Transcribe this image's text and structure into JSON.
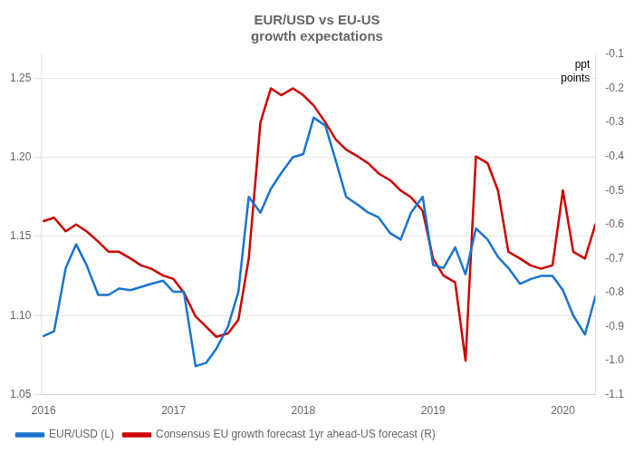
{
  "chart_data": {
    "type": "line",
    "title": "EUR/USD vs EU-US\ngrowth expectations",
    "annotations": [
      "ppt\npoints"
    ],
    "x": [
      2016.0,
      2016.08,
      2016.17,
      2016.25,
      2016.33,
      2016.42,
      2016.5,
      2016.58,
      2016.67,
      2016.75,
      2016.83,
      2016.92,
      2017.0,
      2017.08,
      2017.17,
      2017.25,
      2017.33,
      2017.42,
      2017.5,
      2017.58,
      2017.67,
      2017.75,
      2017.83,
      2017.92,
      2018.0,
      2018.08,
      2018.17,
      2018.25,
      2018.33,
      2018.42,
      2018.5,
      2018.58,
      2018.67,
      2018.75,
      2018.83,
      2018.92,
      2019.0,
      2019.08,
      2019.17,
      2019.25,
      2019.33,
      2019.42,
      2019.5,
      2019.58,
      2019.67,
      2019.75,
      2019.83,
      2019.92,
      2020.0,
      2020.08,
      2020.17,
      2020.25
    ],
    "series": [
      {
        "name": "EUR/USD (L)",
        "color": "#1874CD",
        "values": [
          1.087,
          1.09,
          1.13,
          1.145,
          1.132,
          1.113,
          1.113,
          1.117,
          1.116,
          1.118,
          1.12,
          1.122,
          1.115,
          1.115,
          1.068,
          1.07,
          1.079,
          1.093,
          1.115,
          1.175,
          1.165,
          1.18,
          1.19,
          1.2,
          1.202,
          1.225,
          1.22,
          1.198,
          1.175,
          1.17,
          1.165,
          1.162,
          1.152,
          1.148,
          1.165,
          1.175,
          1.132,
          1.13,
          1.143,
          1.126,
          1.155,
          1.148,
          1.137,
          1.13,
          1.12,
          1.123,
          1.125,
          1.125,
          1.116,
          1.1,
          1.088,
          1.112
        ]
      },
      {
        "name": "Consensus EU growth forecast 1yr ahead-US forecast (R)",
        "color": "#cc0000",
        "axis": "y2",
        "values": [
          -0.59,
          -0.58,
          -0.62,
          -0.6,
          -0.62,
          -0.65,
          -0.68,
          -0.68,
          -0.7,
          -0.72,
          -0.73,
          -0.75,
          -0.76,
          -0.8,
          -0.87,
          -0.9,
          -0.93,
          -0.92,
          -0.88,
          -0.7,
          -0.3,
          -0.2,
          -0.22,
          -0.2,
          -0.22,
          -0.25,
          -0.3,
          -0.35,
          -0.38,
          -0.4,
          -0.42,
          -0.45,
          -0.47,
          -0.5,
          -0.52,
          -0.56,
          -0.7,
          -0.75,
          -0.77,
          -1.0,
          -0.4,
          -0.42,
          -0.5,
          -0.68,
          -0.7,
          -0.72,
          -0.73,
          -0.72,
          -0.5,
          -0.68,
          -0.7,
          -0.6
        ]
      }
    ],
    "xlim": [
      2015.98,
      2020.25
    ],
    "xticks": [
      2016,
      2017,
      2018,
      2019,
      2020
    ],
    "ylim": [
      1.05,
      1.265
    ],
    "yticks": [
      1.05,
      {
        "value": 1.1,
        "label": "1.10"
      },
      1.15,
      {
        "value": 1.2,
        "label": "1.20"
      },
      1.25
    ],
    "y2lim": [
      -1.1,
      -0.1
    ],
    "y2ticks": [
      -1.1,
      {
        "value": -1.0,
        "label": "-1.0"
      },
      -0.9,
      -0.8,
      -0.7,
      -0.6,
      -0.5,
      -0.4,
      -0.3,
      -0.2,
      -0.1
    ],
    "grid": "y",
    "legend": "lower left"
  }
}
